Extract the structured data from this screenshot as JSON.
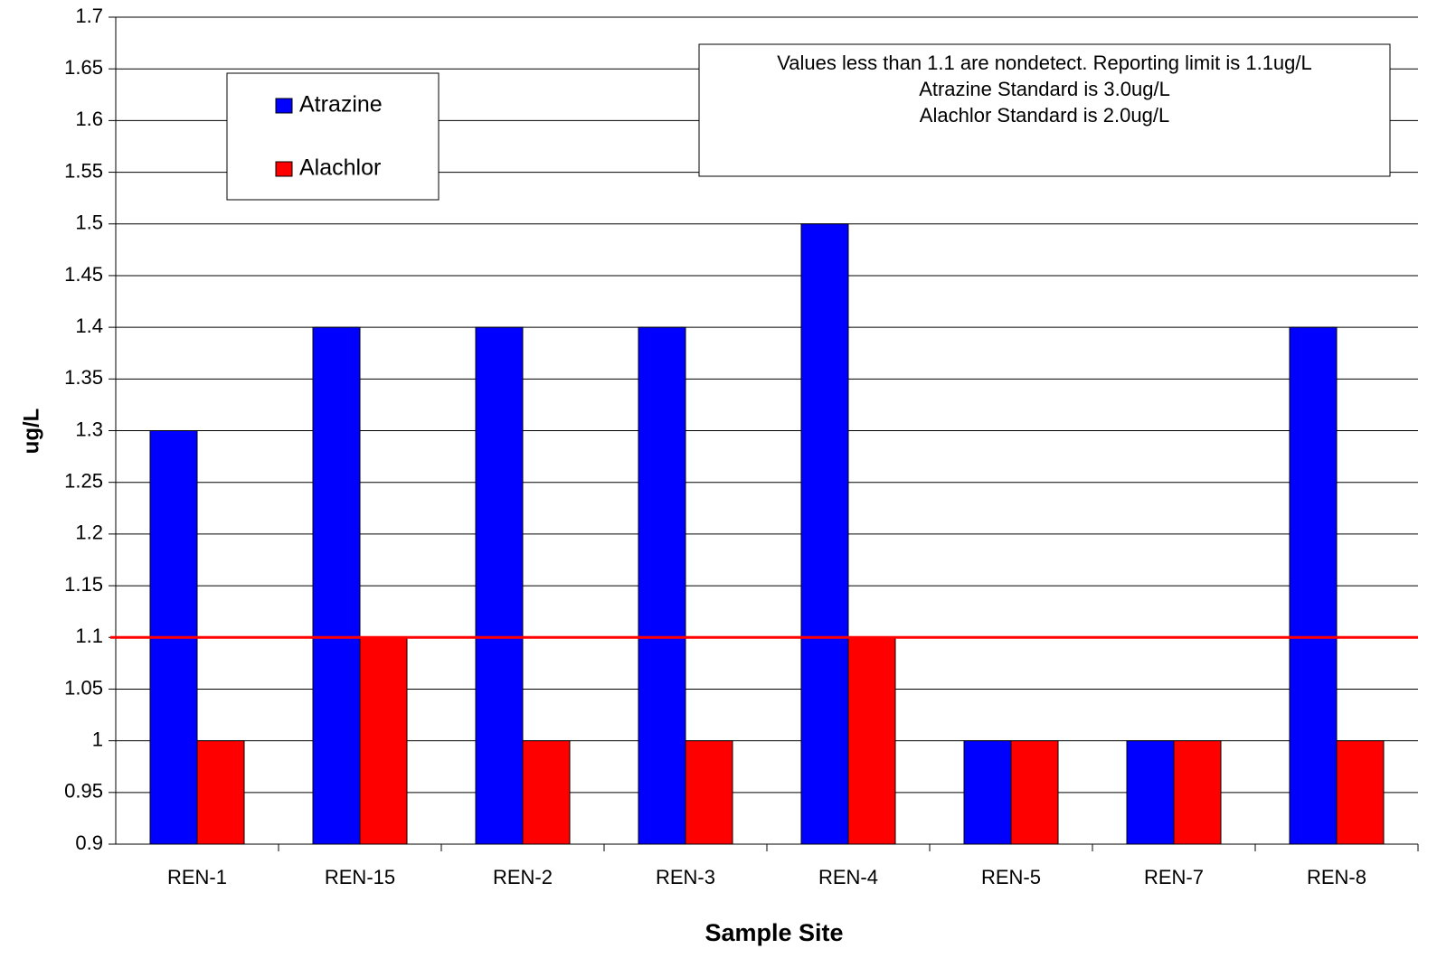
{
  "chart_data": {
    "type": "bar",
    "categories": [
      "REN-1",
      "REN-15",
      "REN-2",
      "REN-3",
      "REN-4",
      "REN-5",
      "REN-7",
      "REN-8"
    ],
    "series": [
      {
        "name": "Atrazine",
        "color": "#0000ff",
        "values": [
          1.3,
          1.4,
          1.4,
          1.4,
          1.5,
          1.0,
          1.0,
          1.4
        ]
      },
      {
        "name": "Alachlor",
        "color": "#ff0000",
        "values": [
          1.0,
          1.1,
          1.0,
          1.0,
          1.1,
          1.0,
          1.0,
          1.0
        ]
      }
    ],
    "ylim": [
      0.9,
      1.7
    ],
    "yticks": [
      0.9,
      0.95,
      1,
      1.05,
      1.1,
      1.15,
      1.2,
      1.25,
      1.3,
      1.35,
      1.4,
      1.45,
      1.5,
      1.55,
      1.6,
      1.65,
      1.7
    ],
    "ylabel": "ug/L",
    "xlabel": "Sample Site",
    "grid": true,
    "legend": "upper left",
    "reference_line": {
      "value": 1.1,
      "color": "#ff0000"
    },
    "annotations": [
      "Values less than 1.1 are nondetect.  Reporting limit is 1.1ug/L",
      "Atrazine Standard is 3.0ug/L",
      "Alachlor Standard is 2.0ug/L"
    ]
  }
}
